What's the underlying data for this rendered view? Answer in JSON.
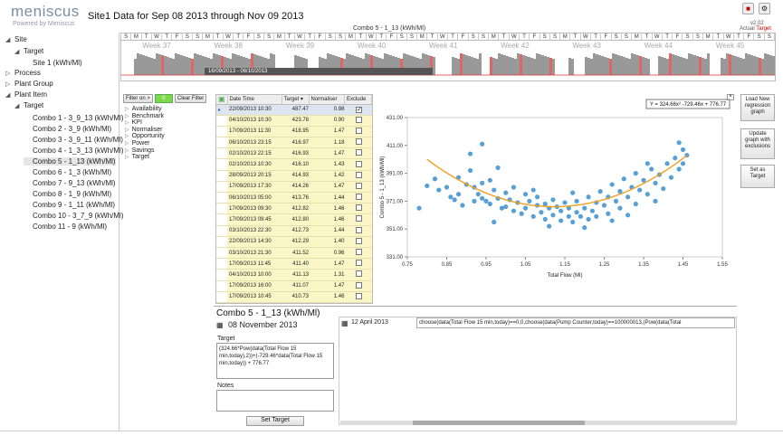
{
  "app": {
    "logo": "meniscus",
    "logo_sub": "Powered by Meniscus",
    "title": "Site1 Data for Sep 08 2013 through Nov 09 2013",
    "combo_title": "Combo 5 - 1_13 (kWh/Ml)",
    "version": "v2.02",
    "actual_label": "Actual",
    "target_label": "Target"
  },
  "tree": [
    {
      "label": "Site",
      "toggle": "◢"
    },
    {
      "label": "Target",
      "toggle": "◢"
    },
    {
      "label": "Site 1 (kWh/Ml)",
      "toggle": ""
    },
    {
      "label": "Process",
      "toggle": "▷"
    },
    {
      "label": "Plant Group",
      "toggle": "▷"
    },
    {
      "label": "Plant Item",
      "toggle": "◢"
    },
    {
      "label": "Target",
      "toggle": "◢"
    },
    {
      "label": "Combo 1 - 3_9_13 (kWh/Ml)",
      "toggle": ""
    },
    {
      "label": "Combo 2 - 3_9 (kWh/Ml)",
      "toggle": ""
    },
    {
      "label": "Combo 3 - 3_9_11 (kWh/Ml)",
      "toggle": ""
    },
    {
      "label": "Combo 4 - 1_3_13 (kWh/Ml)",
      "toggle": ""
    },
    {
      "label": "Combo 5 - 1_13 (kWh/Ml)",
      "toggle": ""
    },
    {
      "label": "Combo 6 - 1_3 (kWh/Ml)",
      "toggle": ""
    },
    {
      "label": "Combo 7 - 9_13 (kWh/Ml)",
      "toggle": ""
    },
    {
      "label": "Combo 8 - 1_9 (kWh/Ml)",
      "toggle": ""
    },
    {
      "label": "Combo 9 - 1_11 (kWh/Ml)",
      "toggle": ""
    },
    {
      "label": "Combo 10 - 3_7_9 (kWh/Ml)",
      "toggle": ""
    },
    {
      "label": "Combo 11 - 9 (kWh/Ml)",
      "toggle": ""
    }
  ],
  "timeline": {
    "days": [
      "S",
      "M",
      "T",
      "W",
      "T",
      "F",
      "S",
      "S",
      "M",
      "T",
      "W",
      "T",
      "F",
      "S",
      "S",
      "M",
      "T",
      "W",
      "T",
      "F",
      "S",
      "S",
      "M",
      "T",
      "W",
      "T",
      "F",
      "S",
      "S",
      "M",
      "T",
      "W",
      "T",
      "F",
      "S",
      "S",
      "M",
      "T",
      "W",
      "T",
      "F",
      "S",
      "S",
      "M",
      "T",
      "W",
      "T",
      "F",
      "S",
      "S",
      "M",
      "T",
      "W",
      "T",
      "F",
      "S",
      "S",
      "M",
      "T",
      "W",
      "T",
      "F",
      "S",
      "S"
    ],
    "weeks": [
      "Week 37",
      "Week 38",
      "Week 39",
      "Week 40",
      "Week 41",
      "Week 42",
      "Week 43",
      "Week 44",
      "Week 45"
    ],
    "selection": "16/09/2013 - 06/10/2013"
  },
  "filter": {
    "filter_on": "Filter on >",
    "count": "0",
    "clear": "Clear Filter",
    "items": [
      "Availability",
      "Benchmark",
      "KPI",
      "Normaliser",
      "Opportunity",
      "Power",
      "Savings",
      "Target"
    ]
  },
  "table": {
    "headers": [
      "Date Time",
      "Target ▾",
      "Normaliser",
      "Exclude"
    ],
    "rows": [
      [
        "22/09/2013 10:30",
        "487.47",
        "0.98"
      ],
      [
        "04/10/2013 10:30",
        "423.78",
        "0.90"
      ],
      [
        "17/09/2013 11:30",
        "418.95",
        "1.47"
      ],
      [
        "06/10/2013 23:15",
        "416.97",
        "1.18"
      ],
      [
        "02/10/2013 22:15",
        "416.93",
        "1.47"
      ],
      [
        "02/10/2013 10:30",
        "416.10",
        "1.43"
      ],
      [
        "28/09/2013 20:15",
        "414.93",
        "1.42"
      ],
      [
        "17/09/2013 17:30",
        "414.26",
        "1.47"
      ],
      [
        "06/10/2013 05:00",
        "413.76",
        "1.44"
      ],
      [
        "17/09/2013 09:30",
        "412.82",
        "1.46"
      ],
      [
        "17/09/2013 09:45",
        "412.80",
        "1.46"
      ],
      [
        "03/10/2013 22:30",
        "412.73",
        "1.44"
      ],
      [
        "22/09/2013 14:30",
        "412.29",
        "1.40"
      ],
      [
        "03/10/2013 21:30",
        "411.52",
        "0.96"
      ],
      [
        "17/09/2013 11:45",
        "411.40",
        "1.47"
      ],
      [
        "04/10/2013 10:00",
        "411.13",
        "1.31"
      ],
      [
        "17/09/2013 16:00",
        "411.07",
        "1.47"
      ],
      [
        "17/09/2013 10:45",
        "410.73",
        "1.46"
      ]
    ]
  },
  "chart_data": {
    "type": "scatter",
    "title": "Y = 324.66x² -729.46x + 776.77",
    "xlabel": "Total Flow (Ml)",
    "ylabel": "Combo 5 - 1_13 (kWh/Ml)",
    "xlim": [
      0.75,
      1.55
    ],
    "ylim": [
      331.0,
      431.0
    ],
    "x_ticks": [
      "0.75",
      "0.85",
      "0.95",
      "1.05",
      "1.15",
      "1.25",
      "1.35",
      "1.45",
      "1.55"
    ],
    "y_ticks": [
      "331.00",
      "351.00",
      "371.00",
      "391.00",
      "411.00",
      "431.00"
    ],
    "regression": {
      "a": 324.66,
      "b": -729.46,
      "c": 776.77,
      "x_range": [
        0.8,
        1.46
      ],
      "color": "#f0a020"
    },
    "point_color": "#3a8fd0",
    "points": [
      [
        0.78,
        366
      ],
      [
        0.8,
        382
      ],
      [
        0.82,
        387
      ],
      [
        0.83,
        379
      ],
      [
        0.85,
        381
      ],
      [
        0.86,
        374
      ],
      [
        0.87,
        372
      ],
      [
        0.88,
        388
      ],
      [
        0.88,
        376
      ],
      [
        0.9,
        383
      ],
      [
        0.91,
        393
      ],
      [
        0.92,
        371
      ],
      [
        0.92,
        381
      ],
      [
        0.93,
        376
      ],
      [
        0.94,
        384
      ],
      [
        0.94,
        373
      ],
      [
        0.95,
        371
      ],
      [
        0.96,
        386
      ],
      [
        0.96,
        369
      ],
      [
        0.97,
        379
      ],
      [
        0.98,
        373
      ],
      [
        0.99,
        366
      ],
      [
        1.0,
        377
      ],
      [
        1.0,
        367
      ],
      [
        1.01,
        372
      ],
      [
        1.02,
        364
      ],
      [
        1.02,
        381
      ],
      [
        1.03,
        370
      ],
      [
        1.04,
        362
      ],
      [
        1.05,
        376
      ],
      [
        1.05,
        366
      ],
      [
        1.06,
        371
      ],
      [
        1.07,
        360
      ],
      [
        1.08,
        368
      ],
      [
        1.08,
        374
      ],
      [
        1.09,
        363
      ],
      [
        1.1,
        369
      ],
      [
        1.1,
        358
      ],
      [
        1.11,
        366
      ],
      [
        1.12,
        372
      ],
      [
        1.12,
        361
      ],
      [
        1.13,
        367
      ],
      [
        1.14,
        357
      ],
      [
        1.14,
        364
      ],
      [
        1.15,
        370
      ],
      [
        1.16,
        360
      ],
      [
        1.16,
        366
      ],
      [
        1.17,
        356
      ],
      [
        1.18,
        363
      ],
      [
        1.18,
        371
      ],
      [
        1.19,
        360
      ],
      [
        1.2,
        366
      ],
      [
        1.21,
        358
      ],
      [
        1.21,
        374
      ],
      [
        1.22,
        364
      ],
      [
        1.23,
        370
      ],
      [
        1.23,
        360
      ],
      [
        1.24,
        378
      ],
      [
        1.25,
        368
      ],
      [
        1.26,
        362
      ],
      [
        1.26,
        374
      ],
      [
        1.27,
        383
      ],
      [
        1.28,
        371
      ],
      [
        1.29,
        366
      ],
      [
        1.29,
        378
      ],
      [
        1.3,
        387
      ],
      [
        1.31,
        374
      ],
      [
        1.32,
        381
      ],
      [
        1.33,
        369
      ],
      [
        1.33,
        391
      ],
      [
        1.34,
        379
      ],
      [
        1.35,
        386
      ],
      [
        1.36,
        376
      ],
      [
        1.37,
        394
      ],
      [
        1.38,
        384
      ],
      [
        1.39,
        390
      ],
      [
        1.4,
        380
      ],
      [
        1.41,
        398
      ],
      [
        1.42,
        388
      ],
      [
        1.43,
        402
      ],
      [
        1.44,
        394
      ],
      [
        1.45,
        408
      ],
      [
        1.45,
        398
      ],
      [
        1.46,
        404
      ],
      [
        0.91,
        405
      ],
      [
        0.94,
        412
      ],
      [
        1.2,
        352
      ],
      [
        1.11,
        353
      ],
      [
        0.97,
        356
      ],
      [
        1.27,
        357
      ],
      [
        1.38,
        371
      ],
      [
        0.98,
        395
      ],
      [
        1.44,
        413
      ],
      [
        1.17,
        377
      ],
      [
        0.89,
        368
      ],
      [
        1.07,
        379
      ],
      [
        1.31,
        361
      ],
      [
        1.36,
        398
      ]
    ]
  },
  "side_buttons": [
    "Load New regression graph",
    "Update graph with exclusions",
    "Set as Target"
  ],
  "lower": {
    "title": "Combo 5 - 1_13 (kWh/Ml)",
    "date": "08 November 2013",
    "target_label": "Target",
    "target_formula": "(324.66*Pow(data(Total Flow 15 min,today),2))+(-729.46*data(Total Flow 15 min,today)) + 776.77",
    "notes_label": "Notes",
    "set_target": "Set Target",
    "rhs_date": "12 April 2013",
    "rhs_formula": "choose(data(Total Flow 15 min,today)==0,0,choose(data(Pump Counter,today)==100000013,(Pow(data(Total"
  }
}
